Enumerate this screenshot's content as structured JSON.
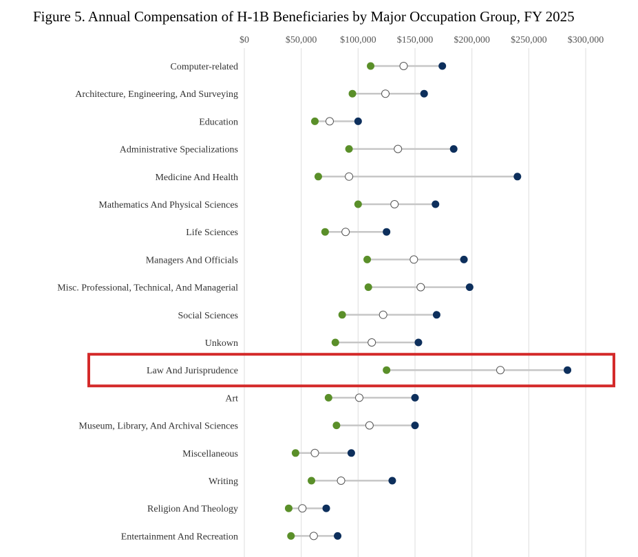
{
  "chart_data": {
    "type": "dot-range",
    "title": "Figure 5. Annual Compensation of H-1B Beneficiaries by Major Occupation Group, FY 2025",
    "xlim": [
      0,
      300000
    ],
    "x_ticks": [
      0,
      50000,
      100000,
      150000,
      200000,
      250000,
      300000
    ],
    "x_tick_labels": [
      "$0",
      "$50,000",
      "$100,000",
      "$150,000",
      "$200,000",
      "$250,000",
      "$300,000"
    ],
    "grid": true,
    "highlighted_category": "Law And Jurisprudence",
    "colors": {
      "low": "#5a8f29",
      "mid_fill": "#ffffff",
      "mid_stroke": "#555555",
      "high": "#0d2f5c",
      "line": "#c6c6c6",
      "grid": "#e2e2e2",
      "highlight": "#d42a2a"
    },
    "categories": [
      "Computer-related",
      "Architecture, Engineering, And Surveying",
      "Education",
      "Administrative Specializations",
      "Medicine And Health",
      "Mathematics And Physical Sciences",
      "Life Sciences",
      "Managers And Officials",
      "Misc. Professional, Technical, And Managerial",
      "Social Sciences",
      "Unkown",
      "Law And Jurisprudence",
      "Art",
      "Museum, Library, And Archival Sciences",
      "Miscellaneous",
      "Writing",
      "Religion And Theology",
      "Entertainment And Recreation"
    ],
    "series": [
      {
        "key": "low",
        "values": [
          111000,
          95000,
          62000,
          92000,
          65000,
          100000,
          71000,
          108000,
          109000,
          86000,
          80000,
          125000,
          74000,
          81000,
          45000,
          59000,
          39000,
          41000
        ]
      },
      {
        "key": "mid",
        "values": [
          140000,
          124000,
          75000,
          135000,
          92000,
          132000,
          89000,
          149000,
          155000,
          122000,
          112000,
          225000,
          101000,
          110000,
          62000,
          85000,
          51000,
          61000
        ]
      },
      {
        "key": "high",
        "values": [
          174000,
          158000,
          100000,
          184000,
          240000,
          168000,
          125000,
          193000,
          198000,
          169000,
          153000,
          284000,
          150000,
          150000,
          94000,
          130000,
          72000,
          82000
        ]
      }
    ]
  }
}
